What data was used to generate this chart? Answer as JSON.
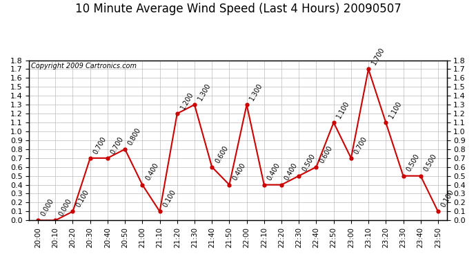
{
  "title": "10 Minute Average Wind Speed (Last 4 Hours) 20090507",
  "copyright": "Copyright 2009 Cartronics.com",
  "x_labels": [
    "20:00",
    "20:10",
    "20:20",
    "20:30",
    "20:40",
    "20:50",
    "21:00",
    "21:10",
    "21:20",
    "21:30",
    "21:40",
    "21:50",
    "22:00",
    "22:10",
    "22:20",
    "22:30",
    "22:40",
    "22:50",
    "23:00",
    "23:10",
    "23:20",
    "23:30",
    "23:40",
    "23:50"
  ],
  "y_values": [
    0.0,
    0.0,
    0.1,
    0.7,
    0.7,
    0.8,
    0.4,
    0.1,
    1.2,
    1.3,
    0.6,
    0.4,
    1.3,
    0.4,
    0.4,
    0.5,
    0.6,
    1.1,
    0.7,
    1.7,
    1.1,
    0.5,
    0.5,
    0.1
  ],
  "line_color": "#cc0000",
  "marker_color": "#cc0000",
  "bg_color": "#ffffff",
  "grid_color": "#bbbbbb",
  "ylim": [
    0.0,
    1.8
  ],
  "yticks": [
    0.0,
    0.1,
    0.2,
    0.3,
    0.4,
    0.5,
    0.6,
    0.7,
    0.8,
    0.9,
    1.0,
    1.1,
    1.2,
    1.3,
    1.4,
    1.5,
    1.6,
    1.7,
    1.8
  ],
  "title_fontsize": 12,
  "copyright_fontsize": 7,
  "label_fontsize": 7
}
